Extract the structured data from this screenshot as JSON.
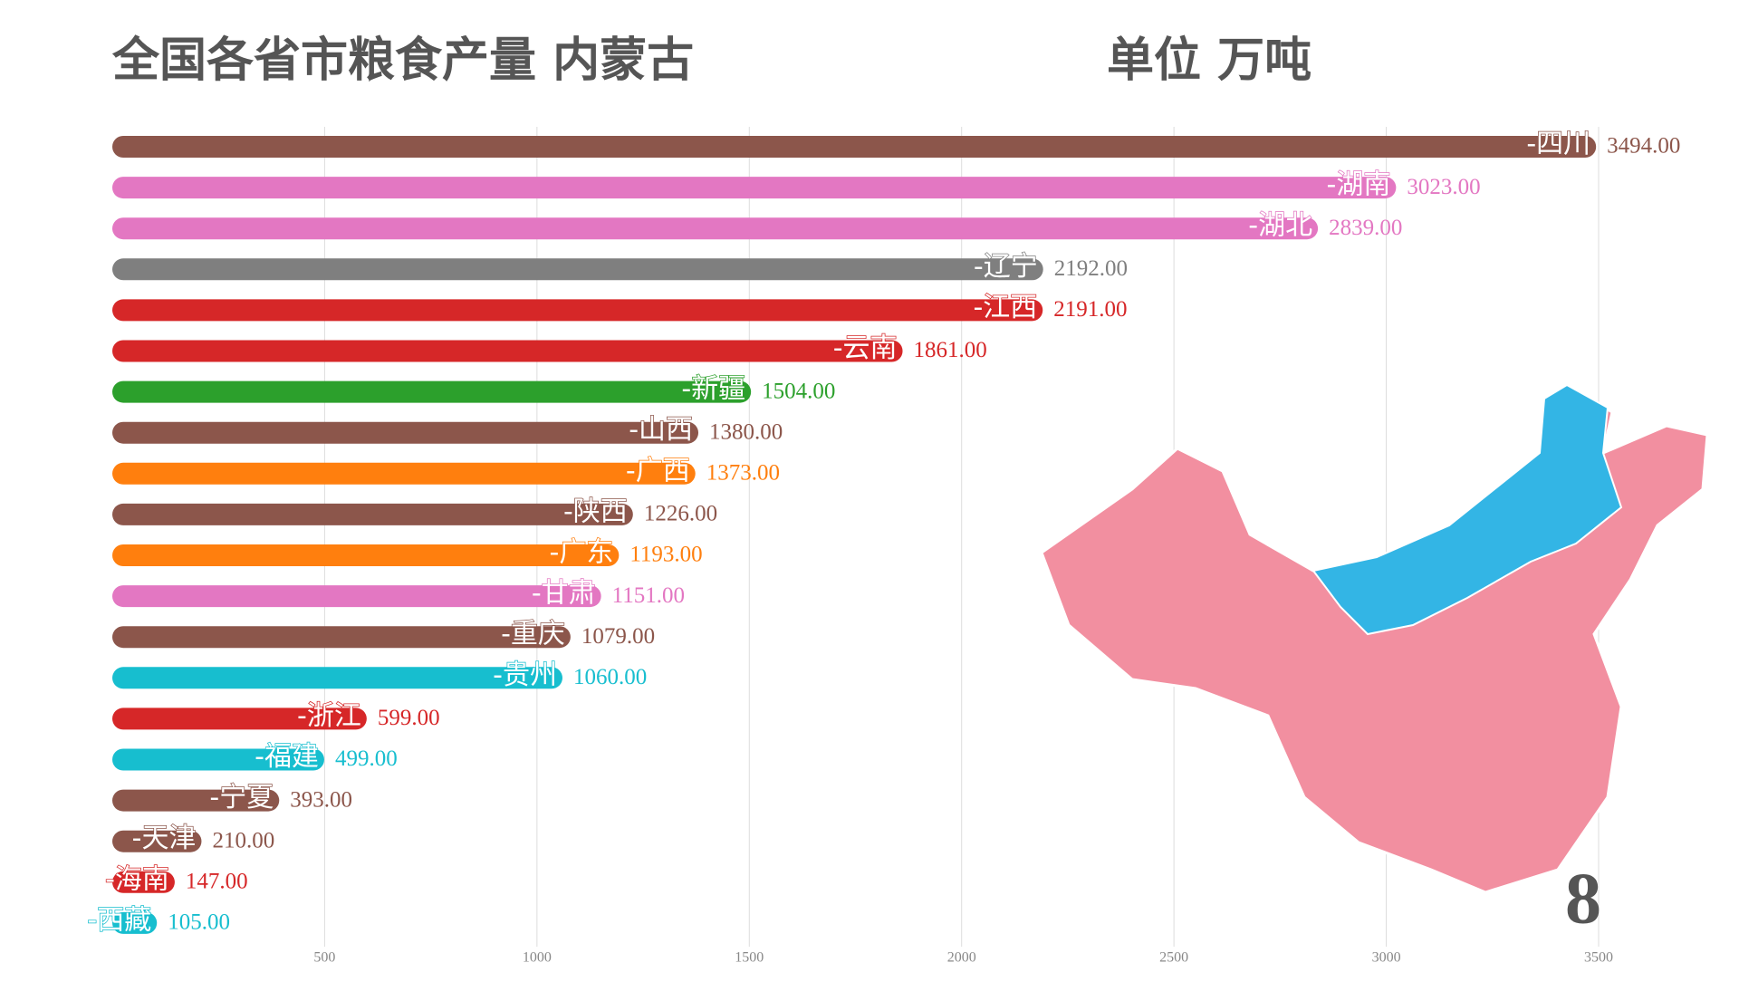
{
  "chart_data": {
    "type": "bar",
    "horizontal": true,
    "title": "全国各省市粮食产量 内蒙古",
    "subtitle": "单位 万吨",
    "counter": "8",
    "categories": [
      "-四川",
      "-湖南",
      "-湖北",
      "-辽宁",
      "-江西",
      "-云南",
      "-新疆",
      "-山西",
      "-广西",
      "-陕西",
      "-广东",
      "-甘肃",
      "-重庆",
      "-贵州",
      "-浙江",
      "-福建",
      "-宁夏",
      "-天津",
      "-海南",
      "-西藏"
    ],
    "values": [
      3494,
      3023,
      2839,
      2192,
      2191,
      1861,
      1504,
      1380,
      1373,
      1226,
      1193,
      1151,
      1079,
      1060,
      599,
      499,
      393,
      210,
      147,
      105
    ],
    "value_labels": [
      "3494.00",
      "3023.00",
      "2839.00",
      "2192.00",
      "2191.00",
      "1861.00",
      "1504.00",
      "1380.00",
      "1373.00",
      "1226.00",
      "1193.00",
      "1151.00",
      "1079.00",
      "1060.00",
      "599.00",
      "499.00",
      "393.00",
      "210.00",
      "147.00",
      "105.00"
    ],
    "colors": [
      "#8c564b",
      "#e377c2",
      "#e377c2",
      "#7f7f7f",
      "#d62728",
      "#d62728",
      "#2ca02c",
      "#8c564b",
      "#ff7f0e",
      "#8c564b",
      "#ff7f0e",
      "#e377c2",
      "#8c564b",
      "#17becf",
      "#d62728",
      "#17becf",
      "#8c564b",
      "#8c564b",
      "#d62728",
      "#17becf"
    ],
    "xlim": [
      0,
      3500
    ],
    "xticks": [
      500,
      1000,
      1500,
      2000,
      2500,
      3000,
      3500
    ],
    "grid": true
  }
}
